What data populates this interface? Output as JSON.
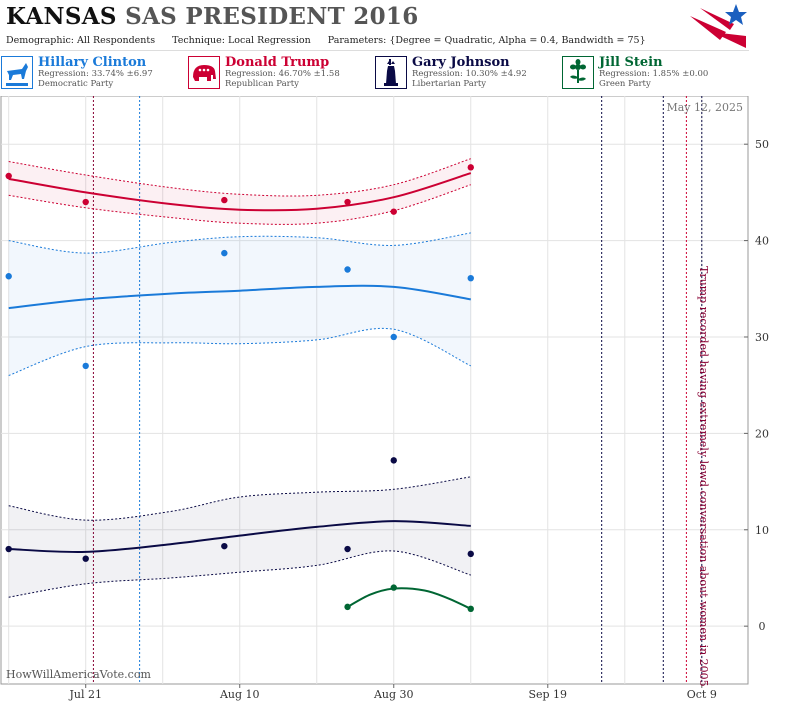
{
  "header": {
    "state": "KANSAS",
    "race": "SAS PRESIDENT 2016",
    "demographic_label": "Demographic:",
    "demographic_value": "All Respondents",
    "technique_label": "Technique:",
    "technique_value": "Local Regression",
    "parameters_label": "Parameters:",
    "parameters_value": "{Degree = Quadratic, Alpha = 0.4, Bandwidth = 75}"
  },
  "legend": [
    {
      "name": "Hillary Clinton",
      "regression": "Regression: 33.74% ±6.97",
      "party": "Democratic Party",
      "color": "#1a7ad9",
      "icon": "donkey-icon",
      "bg": "#e3eefa"
    },
    {
      "name": "Donald Trump",
      "regression": "Regression: 46.70% ±1.58",
      "party": "Republican Party",
      "color": "#cc0033",
      "icon": "elephant-icon",
      "bg": "#f9e3e8"
    },
    {
      "name": "Gary Johnson",
      "regression": "Regression: 10.30% ±4.92",
      "party": "Libertarian Party",
      "color": "#0a0a45",
      "icon": "liberty-statue-icon",
      "bg": "#e6e6ee"
    },
    {
      "name": "Jill Stein",
      "regression": "Regression: 1.85% ±0.00",
      "party": "Green Party",
      "color": "#006633",
      "icon": "flower-icon",
      "bg": "#e3f0e8"
    }
  ],
  "date_label": "May 12, 2025",
  "annotation": "Trump recorded having extremely lewd conversation about women in 2005",
  "watermark": "HowWillAmericaVote.com",
  "chart_data": {
    "type": "line",
    "x_axis": {
      "type": "date",
      "ticks": [
        "Jul 21",
        "Aug 10",
        "Aug 30",
        "Sep 19",
        "Oct 9"
      ],
      "range": [
        "2016-07-10",
        "2016-10-15"
      ]
    },
    "y_axis": {
      "position": "right",
      "ticks": [
        0,
        10,
        20,
        30,
        40,
        50
      ],
      "ylim": [
        -6,
        55
      ]
    },
    "grid": true,
    "series": [
      {
        "name": "Hillary Clinton",
        "color": "#1a7ad9",
        "points": [
          [
            "2016-07-11",
            36.3
          ],
          [
            "2016-07-21",
            27.0
          ],
          [
            "2016-08-08",
            38.7
          ],
          [
            "2016-08-24",
            37.0
          ],
          [
            "2016-08-30",
            30.0
          ],
          [
            "2016-09-09",
            36.1
          ]
        ],
        "fit": [
          [
            "2016-07-11",
            33.0
          ],
          [
            "2016-07-21",
            33.9
          ],
          [
            "2016-08-01",
            34.5
          ],
          [
            "2016-08-10",
            34.8
          ],
          [
            "2016-08-20",
            35.2
          ],
          [
            "2016-08-30",
            35.2
          ],
          [
            "2016-09-09",
            33.9
          ]
        ],
        "upper": [
          [
            "2016-07-11",
            40.0
          ],
          [
            "2016-07-21",
            38.7
          ],
          [
            "2016-08-01",
            39.8
          ],
          [
            "2016-08-10",
            40.4
          ],
          [
            "2016-08-20",
            40.3
          ],
          [
            "2016-08-30",
            39.5
          ],
          [
            "2016-09-09",
            40.8
          ]
        ],
        "lower": [
          [
            "2016-07-11",
            26.0
          ],
          [
            "2016-07-21",
            29.0
          ],
          [
            "2016-08-01",
            29.4
          ],
          [
            "2016-08-10",
            29.3
          ],
          [
            "2016-08-20",
            29.7
          ],
          [
            "2016-08-30",
            30.8
          ],
          [
            "2016-09-09",
            27.0
          ]
        ]
      },
      {
        "name": "Donald Trump",
        "color": "#cc0033",
        "points": [
          [
            "2016-07-11",
            46.7
          ],
          [
            "2016-07-21",
            44.0
          ],
          [
            "2016-08-08",
            44.2
          ],
          [
            "2016-08-24",
            44.0
          ],
          [
            "2016-08-30",
            43.0
          ],
          [
            "2016-09-09",
            47.6
          ]
        ],
        "fit": [
          [
            "2016-07-11",
            46.4
          ],
          [
            "2016-07-21",
            45.0
          ],
          [
            "2016-08-01",
            43.8
          ],
          [
            "2016-08-10",
            43.2
          ],
          [
            "2016-08-20",
            43.3
          ],
          [
            "2016-08-30",
            44.5
          ],
          [
            "2016-09-09",
            47.0
          ]
        ],
        "upper": [
          [
            "2016-07-11",
            48.2
          ],
          [
            "2016-07-21",
            46.8
          ],
          [
            "2016-08-01",
            45.5
          ],
          [
            "2016-08-10",
            44.8
          ],
          [
            "2016-08-20",
            44.7
          ],
          [
            "2016-08-30",
            45.8
          ],
          [
            "2016-09-09",
            48.5
          ]
        ],
        "lower": [
          [
            "2016-07-11",
            44.7
          ],
          [
            "2016-07-21",
            43.4
          ],
          [
            "2016-08-01",
            42.4
          ],
          [
            "2016-08-10",
            41.8
          ],
          [
            "2016-08-20",
            41.8
          ],
          [
            "2016-08-30",
            43.1
          ],
          [
            "2016-09-09",
            45.8
          ]
        ]
      },
      {
        "name": "Gary Johnson",
        "color": "#0a0a45",
        "points": [
          [
            "2016-07-11",
            8.0
          ],
          [
            "2016-07-21",
            7.0
          ],
          [
            "2016-08-08",
            8.3
          ],
          [
            "2016-08-24",
            8.0
          ],
          [
            "2016-08-30",
            17.2
          ],
          [
            "2016-09-09",
            7.5
          ]
        ],
        "fit": [
          [
            "2016-07-11",
            8.0
          ],
          [
            "2016-07-21",
            7.7
          ],
          [
            "2016-08-01",
            8.5
          ],
          [
            "2016-08-10",
            9.4
          ],
          [
            "2016-08-20",
            10.3
          ],
          [
            "2016-08-30",
            10.9
          ],
          [
            "2016-09-09",
            10.4
          ]
        ],
        "upper": [
          [
            "2016-07-11",
            12.5
          ],
          [
            "2016-07-21",
            11.0
          ],
          [
            "2016-08-01",
            11.9
          ],
          [
            "2016-08-10",
            13.4
          ],
          [
            "2016-08-20",
            13.9
          ],
          [
            "2016-08-30",
            14.2
          ],
          [
            "2016-09-09",
            15.5
          ]
        ],
        "lower": [
          [
            "2016-07-11",
            3.0
          ],
          [
            "2016-07-21",
            4.4
          ],
          [
            "2016-08-01",
            5.0
          ],
          [
            "2016-08-10",
            5.6
          ],
          [
            "2016-08-20",
            6.3
          ],
          [
            "2016-08-30",
            7.8
          ],
          [
            "2016-09-09",
            5.3
          ]
        ]
      },
      {
        "name": "Jill Stein",
        "color": "#006633",
        "points": [
          [
            "2016-08-24",
            2.0
          ],
          [
            "2016-08-30",
            4.0
          ],
          [
            "2016-09-09",
            1.8
          ]
        ],
        "fit": [
          [
            "2016-08-24",
            2.0
          ],
          [
            "2016-08-27",
            3.3
          ],
          [
            "2016-08-30",
            3.9
          ],
          [
            "2016-09-03",
            3.7
          ],
          [
            "2016-09-06",
            2.9
          ],
          [
            "2016-09-09",
            1.8
          ]
        ]
      }
    ],
    "event_lines": [
      {
        "date": "2016-07-22",
        "color": "#880033"
      },
      {
        "date": "2016-07-28",
        "color": "#1a7ad9"
      },
      {
        "date": "2016-09-26",
        "color": "#0a0a45"
      },
      {
        "date": "2016-10-04",
        "color": "#0a0a45"
      },
      {
        "date": "2016-10-07",
        "color": "#cc0033"
      },
      {
        "date": "2016-10-09",
        "color": "#0a0a45"
      }
    ]
  }
}
